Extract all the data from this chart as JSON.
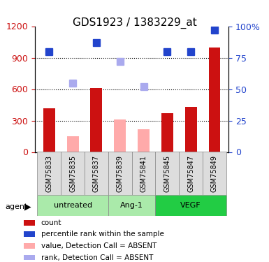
{
  "title": "GDS1923 / 1383229_at",
  "samples": [
    "GSM75833",
    "GSM75835",
    "GSM75837",
    "GSM75839",
    "GSM75841",
    "GSM75845",
    "GSM75847",
    "GSM75849"
  ],
  "count_values": [
    420,
    null,
    610,
    null,
    null,
    370,
    430,
    1000
  ],
  "count_absent_values": [
    null,
    150,
    null,
    310,
    220,
    null,
    null,
    null
  ],
  "rank_values": [
    80,
    null,
    87,
    null,
    null,
    80,
    80,
    97
  ],
  "rank_absent_values": [
    null,
    55,
    null,
    72,
    52,
    null,
    null,
    null
  ],
  "ylim_left": [
    0,
    1200
  ],
  "ylim_right": [
    0,
    100
  ],
  "yticks_left": [
    0,
    300,
    600,
    900,
    1200
  ],
  "yticks_right": [
    0,
    25,
    50,
    75,
    100
  ],
  "ytick_labels_right": [
    "0",
    "25",
    "50",
    "75",
    "100%"
  ],
  "bar_width": 0.5,
  "colors": {
    "count_red": "#cc1111",
    "count_absent_pink": "#ffaaaa",
    "rank_blue": "#2244cc",
    "rank_absent_lightblue": "#aaaaee"
  },
  "group_info": [
    {
      "start": 0,
      "end": 2,
      "label": "untreated",
      "color": "#aaeaaa"
    },
    {
      "start": 3,
      "end": 4,
      "label": "Ang-1",
      "color": "#aaeaaa"
    },
    {
      "start": 5,
      "end": 7,
      "label": "VEGF",
      "color": "#22cc44"
    }
  ],
  "legend_items": [
    {
      "label": "count",
      "color": "#cc1111"
    },
    {
      "label": "percentile rank within the sample",
      "color": "#2244cc"
    },
    {
      "label": "value, Detection Call = ABSENT",
      "color": "#ffaaaa"
    },
    {
      "label": "rank, Detection Call = ABSENT",
      "color": "#aaaaee"
    }
  ]
}
